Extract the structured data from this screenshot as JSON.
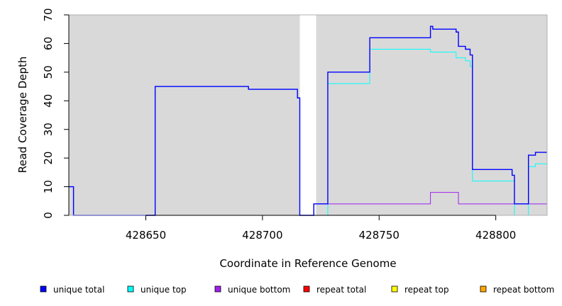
{
  "chart_data": {
    "type": "line",
    "title": "",
    "xlabel": "Coordinate in Reference Genome",
    "ylabel": "Read Coverage Depth",
    "xlim": [
      428617,
      428822
    ],
    "ylim": [
      0,
      70
    ],
    "x_ticks": [
      428650,
      428700,
      428750,
      428800
    ],
    "x_tick_labels": [
      "428650",
      "428700",
      "428750",
      "428800"
    ],
    "y_ticks": [
      0,
      10,
      20,
      30,
      40,
      50,
      60,
      70
    ],
    "y_tick_labels": [
      "0",
      "10",
      "20",
      "30",
      "40",
      "50",
      "60",
      "70"
    ],
    "background_color": "#d9d9d9",
    "gap_region": [
      428716,
      428723
    ],
    "series": [
      {
        "name": "unique total",
        "color": "#0000ff",
        "points": [
          [
            428617,
            10
          ],
          [
            428619,
            10
          ],
          [
            428619,
            0
          ],
          [
            428654,
            0
          ],
          [
            428654,
            45
          ],
          [
            428694,
            45
          ],
          [
            428694,
            44
          ],
          [
            428715,
            44
          ],
          [
            428715,
            41
          ],
          [
            428716,
            41
          ],
          [
            428716,
            0
          ],
          [
            428722,
            0
          ],
          [
            428722,
            4
          ],
          [
            428728,
            4
          ],
          [
            428728,
            50
          ],
          [
            428746,
            50
          ],
          [
            428746,
            62
          ],
          [
            428772,
            62
          ],
          [
            428772,
            66
          ],
          [
            428773,
            66
          ],
          [
            428773,
            65
          ],
          [
            428783,
            65
          ],
          [
            428783,
            64
          ],
          [
            428784,
            64
          ],
          [
            428784,
            59
          ],
          [
            428787,
            59
          ],
          [
            428787,
            58
          ],
          [
            428789,
            58
          ],
          [
            428789,
            56
          ],
          [
            428790,
            56
          ],
          [
            428790,
            16
          ],
          [
            428807,
            16
          ],
          [
            428807,
            14
          ],
          [
            428808,
            14
          ],
          [
            428808,
            4
          ],
          [
            428814,
            4
          ],
          [
            428814,
            21
          ],
          [
            428817,
            21
          ],
          [
            428817,
            22
          ],
          [
            428822,
            22
          ]
        ]
      },
      {
        "name": "unique top",
        "color": "#00ffff",
        "points": [
          [
            428617,
            10
          ],
          [
            428619,
            10
          ],
          [
            428619,
            0
          ],
          [
            428654,
            0
          ],
          [
            428654,
            45
          ],
          [
            428694,
            45
          ],
          [
            428694,
            44
          ],
          [
            428715,
            44
          ],
          [
            428715,
            41
          ],
          [
            428716,
            41
          ],
          [
            428716,
            0
          ],
          [
            428728,
            0
          ],
          [
            428728,
            46
          ],
          [
            428746,
            46
          ],
          [
            428746,
            58
          ],
          [
            428772,
            58
          ],
          [
            428772,
            57
          ],
          [
            428783,
            57
          ],
          [
            428783,
            55
          ],
          [
            428787,
            55
          ],
          [
            428787,
            54
          ],
          [
            428789,
            54
          ],
          [
            428789,
            52
          ],
          [
            428790,
            52
          ],
          [
            428790,
            12
          ],
          [
            428808,
            12
          ],
          [
            428808,
            0
          ],
          [
            428814,
            0
          ],
          [
            428814,
            17
          ],
          [
            428817,
            17
          ],
          [
            428817,
            18
          ],
          [
            428822,
            18
          ]
        ]
      },
      {
        "name": "unique bottom",
        "color": "#a020f0",
        "points": [
          [
            428617,
            10
          ],
          [
            428619,
            10
          ],
          [
            428619,
            0
          ],
          [
            428722,
            0
          ],
          [
            428722,
            4
          ],
          [
            428772,
            4
          ],
          [
            428772,
            8
          ],
          [
            428784,
            8
          ],
          [
            428784,
            4
          ],
          [
            428822,
            4
          ]
        ]
      },
      {
        "name": "repeat total",
        "color": "#ff0000",
        "points": [
          [
            428619,
            0
          ],
          [
            428716,
            0
          ]
        ]
      },
      {
        "name": "repeat top",
        "color": "#ffff00",
        "points": [
          [
            428723,
            0
          ],
          [
            428822,
            0
          ]
        ]
      },
      {
        "name": "repeat bottom",
        "color": "#ffa500",
        "points": [
          [
            428723,
            0
          ],
          [
            428822,
            0
          ]
        ]
      }
    ],
    "legend_position": "bottom"
  }
}
